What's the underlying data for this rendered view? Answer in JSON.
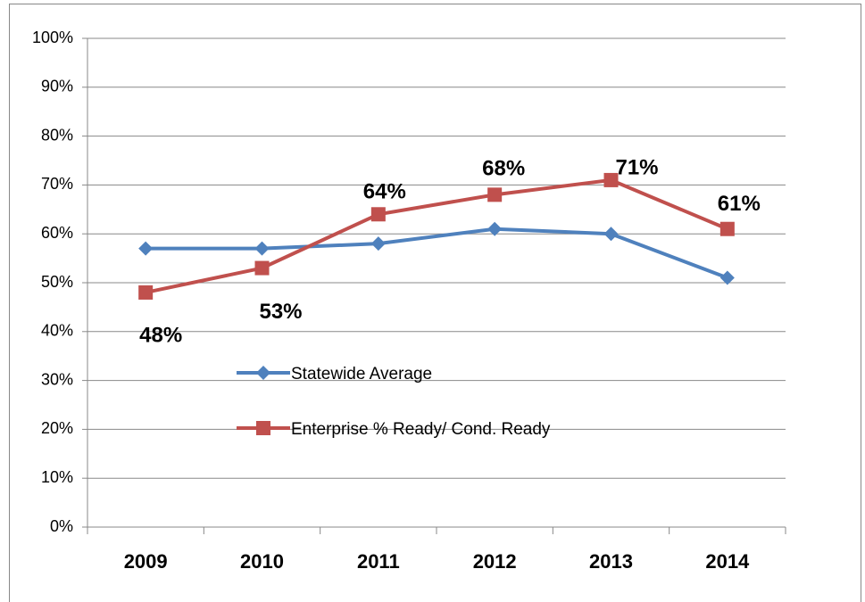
{
  "chart_data": {
    "type": "line",
    "categories": [
      "2009",
      "2010",
      "2011",
      "2012",
      "2013",
      "2014"
    ],
    "series": [
      {
        "name": "Statewide Average",
        "color": "#4f81bd",
        "marker": "diamond",
        "values": [
          57,
          57,
          58,
          61,
          60,
          51
        ]
      },
      {
        "name": "Enterprise % Ready/ Cond. Ready",
        "color": "#c0504d",
        "marker": "square",
        "values": [
          48,
          53,
          64,
          68,
          71,
          61
        ],
        "value_labels": [
          "48%",
          "53%",
          "64%",
          "68%",
          "71%",
          "61%"
        ]
      }
    ],
    "ylim": [
      0,
      100
    ],
    "yticks": [
      {
        "value": 0,
        "label": "0%"
      },
      {
        "value": 10,
        "label": "10%"
      },
      {
        "value": 20,
        "label": "20%"
      },
      {
        "value": 30,
        "label": "30%"
      },
      {
        "value": 40,
        "label": "40%"
      },
      {
        "value": 50,
        "label": "50%"
      },
      {
        "value": 60,
        "label": "60%"
      },
      {
        "value": 70,
        "label": "70%"
      },
      {
        "value": 80,
        "label": "80%"
      },
      {
        "value": 90,
        "label": "90%"
      },
      {
        "value": 100,
        "label": "100%"
      }
    ],
    "grid": true
  }
}
